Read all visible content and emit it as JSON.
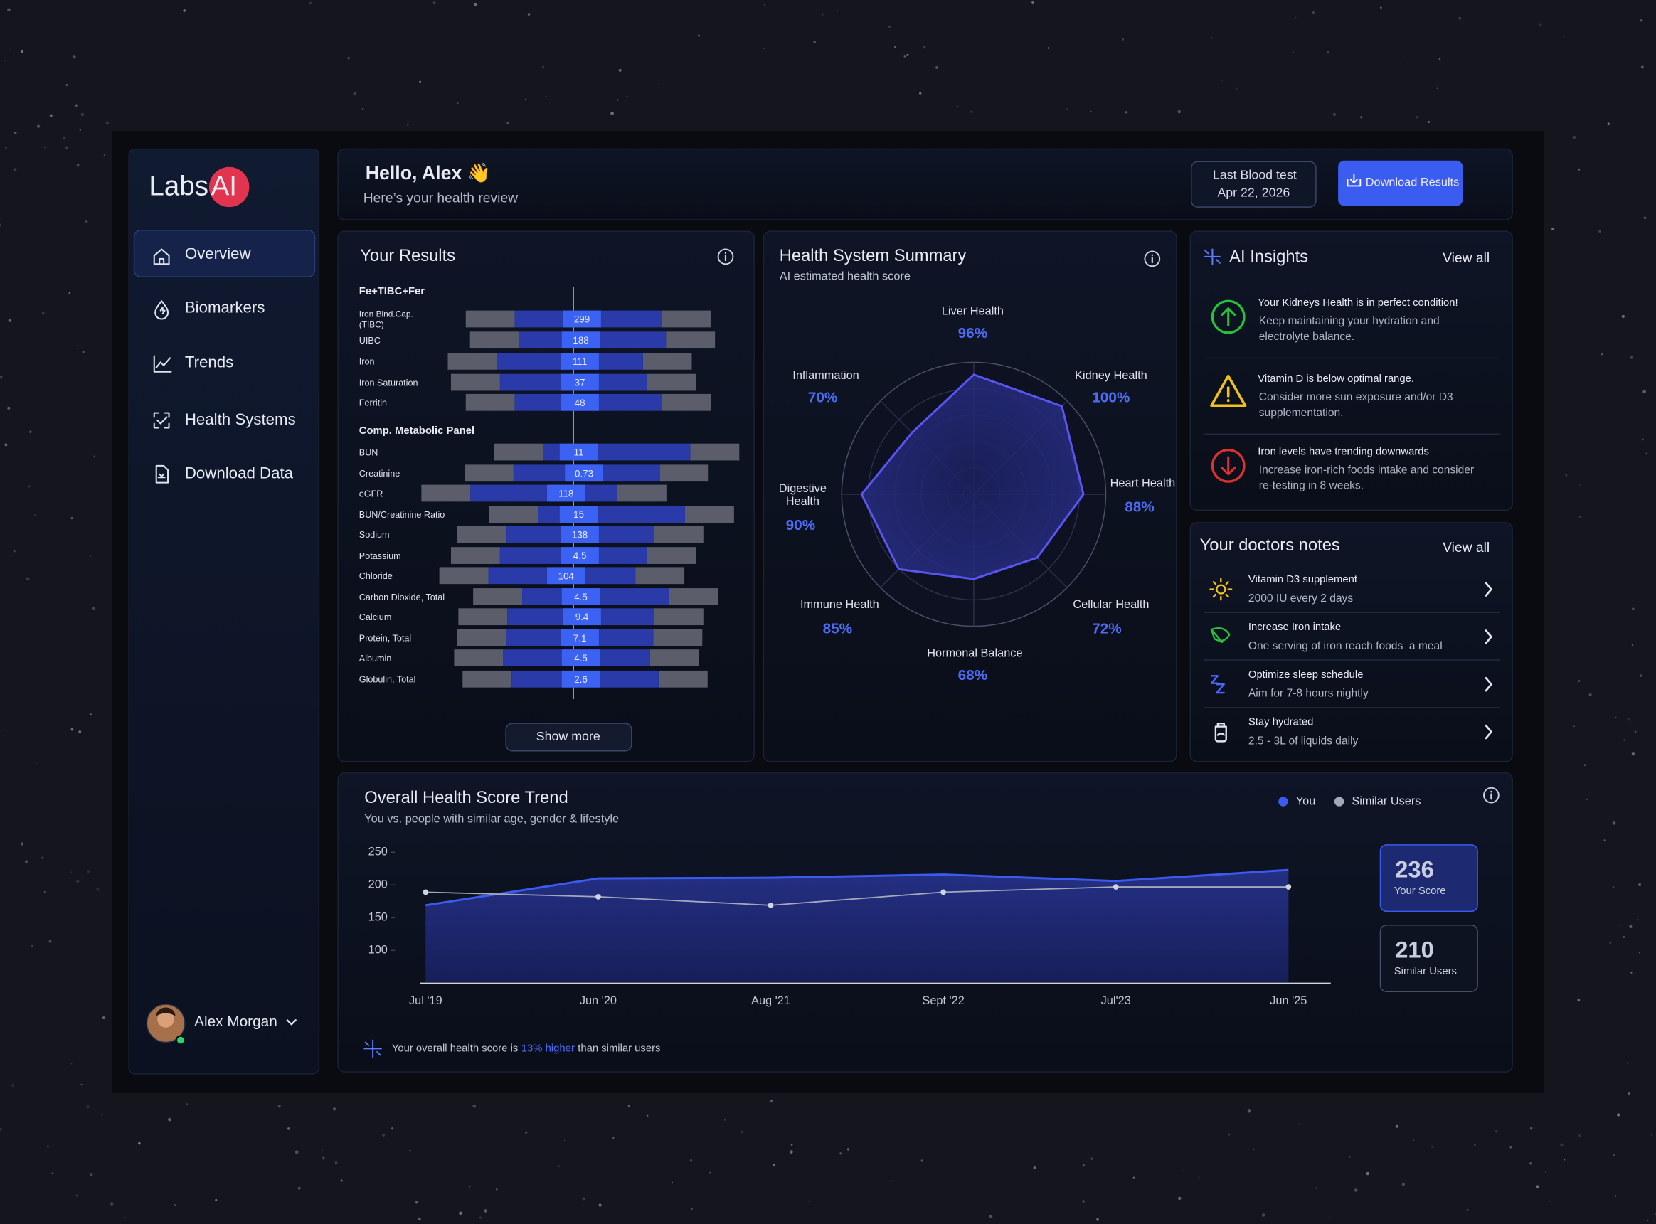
{
  "sidebar": {
    "logo": {
      "text": "Labs",
      "badge": "AI"
    },
    "nav": [
      "Overview",
      "Biomarkers",
      "Trends",
      "Health Systems",
      "Download Data"
    ],
    "user": "Alex Morgan"
  },
  "header": {
    "greeting": "Hello, Alex 👋",
    "subtitle": "Here’s your health review",
    "last_test_label": "Last Blood test",
    "last_test_date": "Apr 22, 2026",
    "download": "Download Results"
  },
  "results": {
    "title": "Your Results",
    "groups": [
      {
        "name": "Fe+TIBC+Fer",
        "rows": [
          {
            "label": "Iron Bind.Cap. (TIBC)",
            "value": 299
          },
          {
            "label": "UIBC",
            "value": 188
          },
          {
            "label": "Iron",
            "value": 111
          },
          {
            "label": "Iron Saturation",
            "value": 37
          },
          {
            "label": "Ferritin",
            "value": 48
          }
        ]
      },
      {
        "name": "Comp. Metabolic Panel",
        "rows": [
          {
            "label": "BUN",
            "value": 11
          },
          {
            "label": "Creatinine",
            "value": 0.73
          },
          {
            "label": "eGFR",
            "value": 118
          },
          {
            "label": "BUN/Creatinine Ratio",
            "value": 15
          },
          {
            "label": "Sodium",
            "value": 138
          },
          {
            "label": "Potassium",
            "value": 4.5
          },
          {
            "label": "Chloride",
            "value": 104
          },
          {
            "label": "Carbon Dioxide, Total",
            "value": 4.5
          },
          {
            "label": "Calcium",
            "value": 9.4
          },
          {
            "label": "Protein, Total",
            "value": 7.1
          },
          {
            "label": "Albumin",
            "value": 4.5
          },
          {
            "label": "Globulin, Total",
            "value": 2.6
          }
        ]
      }
    ],
    "button": "Show more"
  },
  "insights": {
    "title": "AI Insights",
    "view_all": "View all",
    "items": [
      {
        "title": "Your Kidneys Health is in perfect condition!",
        "body": "Keep maintaining your hydration and electrolyte balance."
      },
      {
        "title": "Vitamin D is below optimal range.",
        "body": "Consider more sun exposure and/or D3 supplementation."
      },
      {
        "title": "Iron levels have trending downwards",
        "body": "Increase iron-rich foods intake and consider re-testing in 8 weeks."
      }
    ]
  },
  "doctor_notes": {
    "title": "Your doctors notes",
    "view_all": "View all",
    "items": [
      {
        "title": "Vitamin D3 supplement",
        "detail": "2000 IU every 2 days"
      },
      {
        "title": "Increase Iron intake",
        "detail": "One serving of iron reach foods  a meal"
      },
      {
        "title": "Optimize sleep schedule",
        "detail": "Aim for 7-8 hours nightly"
      },
      {
        "title": "Stay hydrated",
        "detail": "2.5 - 3L of liquids daily"
      }
    ]
  },
  "chart_data": [
    {
      "type": "radar",
      "title": "Health System Summary",
      "subtitle": "AI estimated health score",
      "categories": [
        "Liver Health",
        "Kidney Health",
        "Heart Health",
        "Cellular Health",
        "Hormonal Balance",
        "Immune Health",
        "Digestive Health",
        "Inflammation"
      ],
      "values": [
        96,
        100,
        88,
        72,
        68,
        85,
        90,
        70
      ],
      "value_labels": [
        "96%",
        "100%",
        "88%",
        "72%",
        "68%",
        "85%",
        "90%",
        "70%"
      ],
      "rlim": [
        0,
        100
      ],
      "color": "#5a55f0"
    },
    {
      "type": "line",
      "title": "Overall Health Score Trend",
      "subtitle": "You vs. people with similar age, gender & lifestyle",
      "categories": [
        "Jul '19",
        "Jun '20",
        "Aug '21",
        "Sept '22",
        "Jul'23",
        "Jun '25"
      ],
      "series": [
        {
          "name": "You",
          "color": "#3b5bf0",
          "style": "area",
          "values": [
            169,
            210,
            211,
            216,
            206,
            223
          ]
        },
        {
          "name": "Similar Users",
          "color": "#a3a8bb",
          "style": "line",
          "values": [
            189,
            182,
            169,
            189,
            197,
            197
          ]
        }
      ],
      "ylim": [
        50,
        250
      ],
      "yticks": [
        100,
        150,
        200,
        250
      ],
      "scores": [
        {
          "value": 236,
          "label": "Your Score"
        },
        {
          "value": 210,
          "label": "Similar Users"
        }
      ],
      "note": [
        "Your overall health score is",
        "13% higher",
        "than similar users"
      ]
    }
  ]
}
